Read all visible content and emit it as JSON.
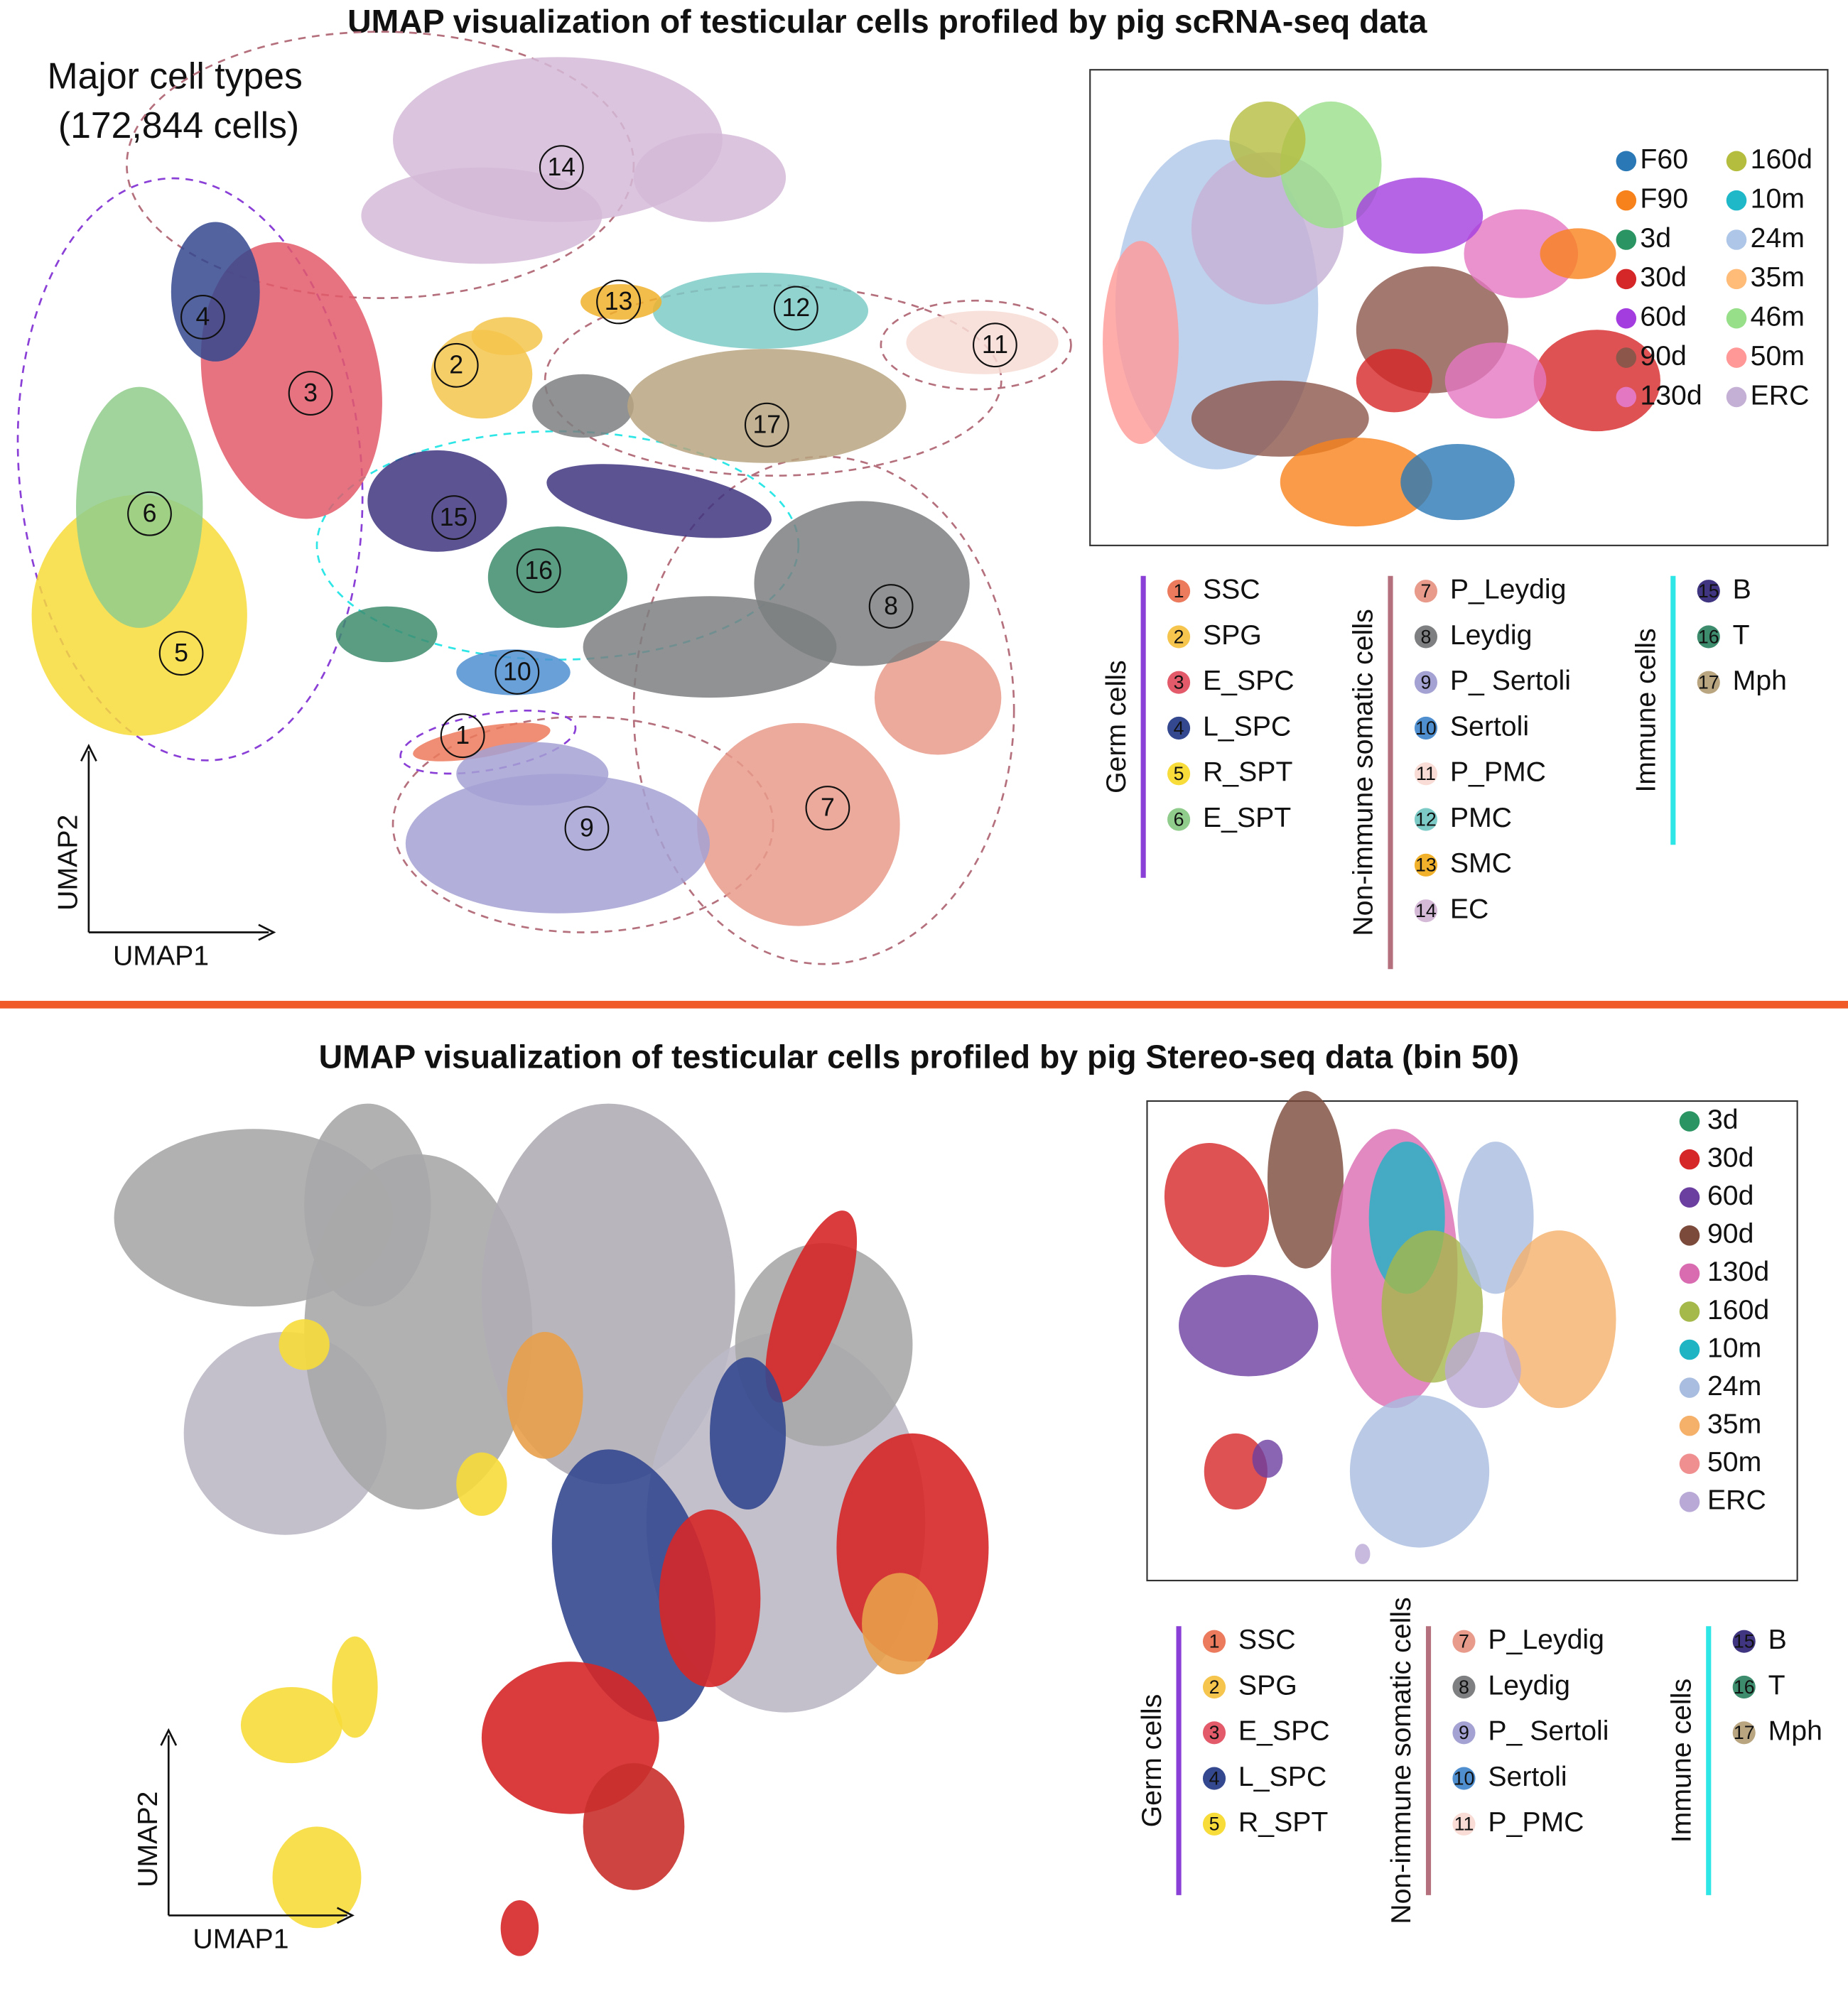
{
  "top": {
    "title": "UMAP visualization of testicular cells profiled by pig scRNA-seq data",
    "subtitle": "Major cell types",
    "cell_count": "(172,844 cells)",
    "axis_x": "UMAP1",
    "axis_y": "UMAP2",
    "samples": [
      {
        "name": "F60",
        "color": "#2a78b5"
      },
      {
        "name": "F90",
        "color": "#f7821c"
      },
      {
        "name": "3d",
        "color": "#2a9462"
      },
      {
        "name": "30d",
        "color": "#d62728"
      },
      {
        "name": "60d",
        "color": "#a43de0"
      },
      {
        "name": "90d",
        "color": "#8c564b"
      },
      {
        "name": "130d",
        "color": "#e377c2"
      },
      {
        "name": "160d",
        "color": "#b5bd3f"
      },
      {
        "name": "10m",
        "color": "#1fb8c9"
      },
      {
        "name": "24m",
        "color": "#aec7e8"
      },
      {
        "name": "35m",
        "color": "#ffbb78"
      },
      {
        "name": "46m",
        "color": "#98df8a"
      },
      {
        "name": "50m",
        "color": "#ff9896"
      },
      {
        "name": "ERC",
        "color": "#c5b0d5"
      }
    ],
    "groups": [
      {
        "name": "Germ cells",
        "color": "#8a3fd6",
        "items": [
          {
            "id": "1",
            "name": "SSC",
            "color": "#ec7a5c"
          },
          {
            "id": "2",
            "name": "SPG",
            "color": "#f5c54e"
          },
          {
            "id": "3",
            "name": "E_SPC",
            "color": "#e35b6a"
          },
          {
            "id": "4",
            "name": "L_SPC",
            "color": "#34488f"
          },
          {
            "id": "5",
            "name": "R_SPT",
            "color": "#f7dc3a"
          },
          {
            "id": "6",
            "name": "E_SPT",
            "color": "#90cd8c"
          }
        ]
      },
      {
        "name": "Non-immune somatic cells",
        "color": "#b5707d",
        "items": [
          {
            "id": "7",
            "name": "P_Leydig",
            "color": "#e99b8b"
          },
          {
            "id": "8",
            "name": "Leydig",
            "color": "#7d7f80"
          },
          {
            "id": "9",
            "name": "P_ Sertoli",
            "color": "#a4a1d3"
          },
          {
            "id": "10",
            "name": "Sertoli",
            "color": "#4f8fd0"
          },
          {
            "id": "11",
            "name": "P_PMC",
            "color": "#f8dcd5"
          },
          {
            "id": "12",
            "name": "PMC",
            "color": "#7dcbc7"
          },
          {
            "id": "13",
            "name": "SMC",
            "color": "#f1b12b"
          },
          {
            "id": "14",
            "name": "EC",
            "color": "#d5bad8"
          }
        ]
      },
      {
        "name": "Immune cells",
        "color": "#2ee6e6",
        "items": [
          {
            "id": "15",
            "name": "B",
            "color": "#3f3580"
          },
          {
            "id": "16",
            "name": "T",
            "color": "#3d8c6d"
          },
          {
            "id": "17",
            "name": "Mph",
            "color": "#b9a580"
          }
        ]
      }
    ]
  },
  "bottom": {
    "title": "UMAP visualization of testicular cells profiled by pig Stereo-seq data (bin 50)",
    "axis_x": "UMAP1",
    "axis_y": "UMAP2",
    "samples": [
      {
        "name": "3d",
        "color": "#2a9462"
      },
      {
        "name": "30d",
        "color": "#d62728"
      },
      {
        "name": "60d",
        "color": "#6b3fa0"
      },
      {
        "name": "90d",
        "color": "#7b4a3a"
      },
      {
        "name": "130d",
        "color": "#d96bb0"
      },
      {
        "name": "160d",
        "color": "#a5b84a"
      },
      {
        "name": "10m",
        "color": "#1eb4c4"
      },
      {
        "name": "24m",
        "color": "#a9bde0"
      },
      {
        "name": "35m",
        "color": "#f5b06a"
      },
      {
        "name": "50m",
        "color": "#f08f8f"
      },
      {
        "name": "ERC",
        "color": "#b9a9d6"
      }
    ],
    "groups": [
      {
        "name": "Germ cells",
        "color": "#8a3fd6",
        "items": [
          {
            "id": "1",
            "name": "SSC",
            "color": "#ec7a5c"
          },
          {
            "id": "2",
            "name": "SPG",
            "color": "#f5c54e"
          },
          {
            "id": "3",
            "name": "E_SPC",
            "color": "#e35b6a"
          },
          {
            "id": "4",
            "name": "L_SPC",
            "color": "#34488f"
          },
          {
            "id": "5",
            "name": "R_SPT",
            "color": "#f7dc3a"
          }
        ]
      },
      {
        "name": "Non-immune somatic cells",
        "color": "#b5707d",
        "items": [
          {
            "id": "7",
            "name": "P_Leydig",
            "color": "#e99b8b"
          },
          {
            "id": "8",
            "name": "Leydig",
            "color": "#7d7f80"
          },
          {
            "id": "9",
            "name": "P_ Sertoli",
            "color": "#a4a1d3"
          },
          {
            "id": "10",
            "name": "Sertoli",
            "color": "#4f8fd0"
          },
          {
            "id": "11",
            "name": "P_PMC",
            "color": "#f8dcd5"
          }
        ]
      },
      {
        "name": "Immune cells",
        "color": "#2ee6e6",
        "items": [
          {
            "id": "15",
            "name": "B",
            "color": "#3f3580"
          },
          {
            "id": "16",
            "name": "T",
            "color": "#3d8c6d"
          },
          {
            "id": "17",
            "name": "Mph",
            "color": "#b9a580"
          }
        ]
      }
    ]
  }
}
